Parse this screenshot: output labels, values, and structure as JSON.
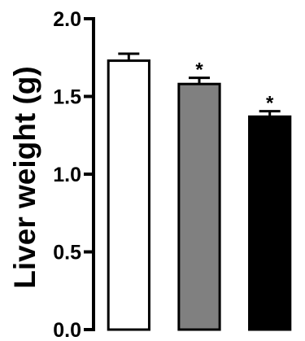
{
  "chart_data": {
    "type": "bar",
    "ylabel": "Liver weight (g)",
    "xlabel": "",
    "ylim": [
      0.0,
      2.0
    ],
    "yticks": [
      0.0,
      0.5,
      1.0,
      1.5,
      2.0
    ],
    "ytick_labels": [
      "0.0",
      "0.5",
      "1.0",
      "1.5",
      "2.0"
    ],
    "grid": false,
    "legend": "none",
    "bars": [
      {
        "value": 1.73,
        "error": 0.045,
        "color": "#ffffff",
        "annotation": ""
      },
      {
        "value": 1.58,
        "error": 0.04,
        "color": "#808080",
        "annotation": "*"
      },
      {
        "value": 1.37,
        "error": 0.035,
        "color": "#000000",
        "annotation": "*"
      }
    ]
  }
}
